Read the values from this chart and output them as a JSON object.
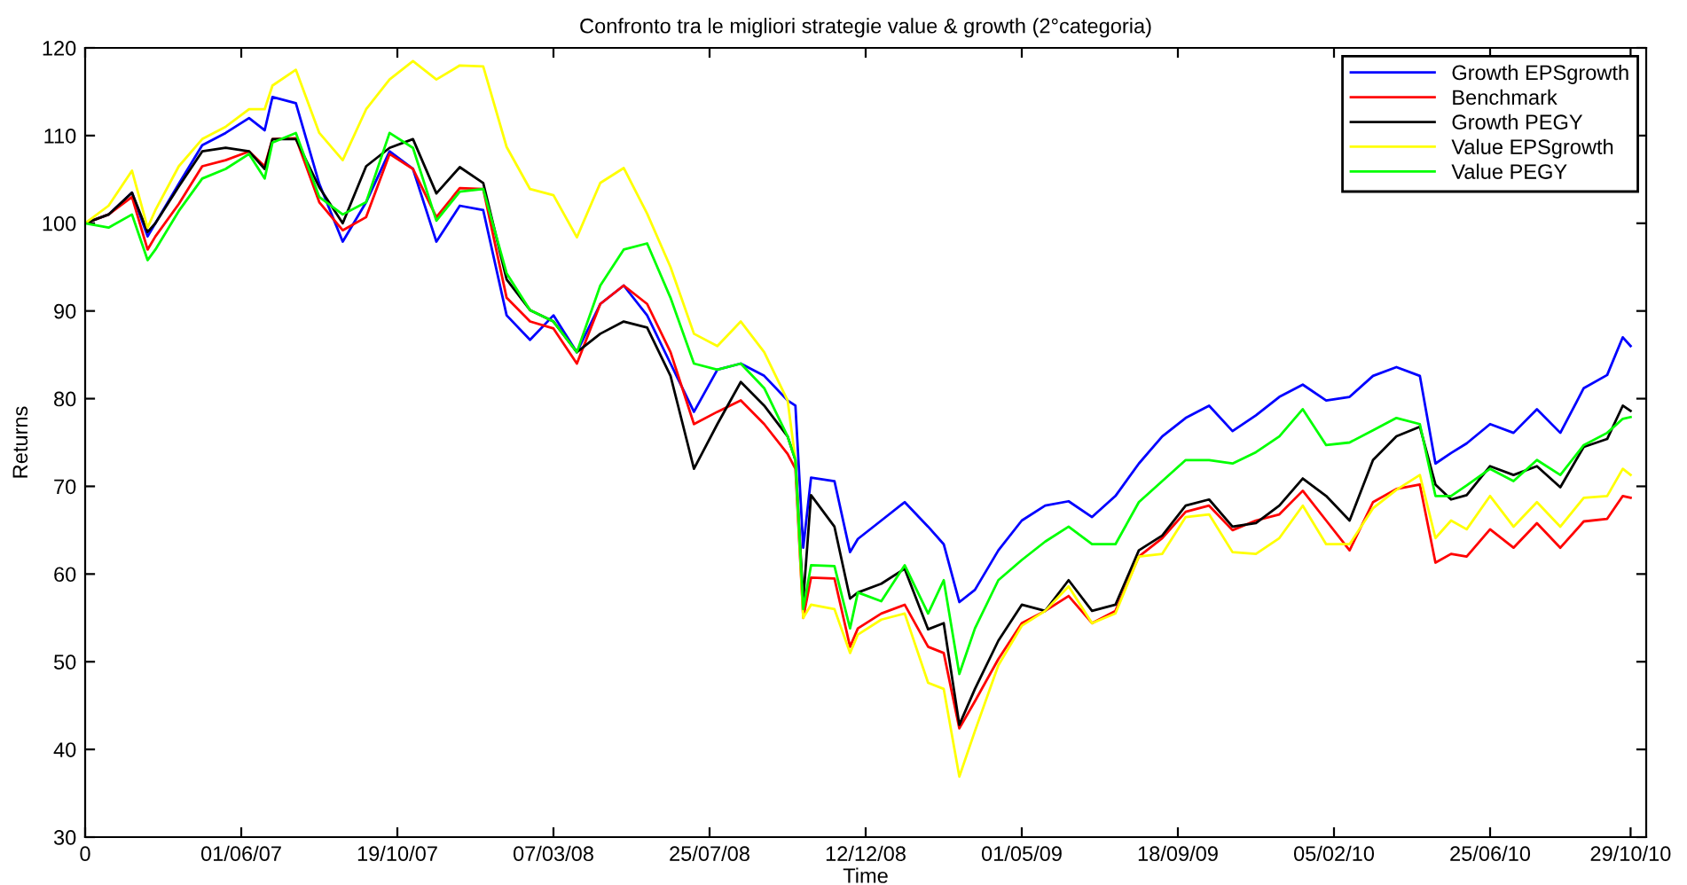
{
  "chart_data": {
    "type": "line",
    "title": "Confronto tra le migliori strategie value & growth (2°categoria)",
    "xlabel": "Time",
    "ylabel": "Returns",
    "x": [
      "2007-01-12",
      "2007-02-02",
      "2007-02-23",
      "2007-03-09",
      "2007-03-16",
      "2007-04-06",
      "2007-04-27",
      "2007-05-18",
      "2007-06-08",
      "2007-06-22",
      "2007-06-29",
      "2007-07-20",
      "2007-08-10",
      "2007-08-31",
      "2007-09-21",
      "2007-10-12",
      "2007-11-02",
      "2007-11-23",
      "2007-12-14",
      "2008-01-04",
      "2008-01-25",
      "2008-02-15",
      "2008-03-07",
      "2008-03-28",
      "2008-04-18",
      "2008-05-09",
      "2008-05-30",
      "2008-06-20",
      "2008-07-11",
      "2008-08-01",
      "2008-08-22",
      "2008-09-12",
      "2008-10-03",
      "2008-10-10",
      "2008-10-17",
      "2008-10-24",
      "2008-11-14",
      "2008-11-28",
      "2008-12-05",
      "2008-12-26",
      "2009-01-16",
      "2009-02-06",
      "2009-02-20",
      "2009-03-06",
      "2009-03-20",
      "2009-04-10",
      "2009-05-01",
      "2009-05-22",
      "2009-06-12",
      "2009-07-03",
      "2009-07-24",
      "2009-08-14",
      "2009-09-04",
      "2009-09-25",
      "2009-10-16",
      "2009-11-06",
      "2009-11-27",
      "2009-12-18",
      "2010-01-08",
      "2010-01-29",
      "2010-02-19",
      "2010-03-12",
      "2010-04-02",
      "2010-04-23",
      "2010-05-07",
      "2010-05-21",
      "2010-06-04",
      "2010-06-25",
      "2010-07-16",
      "2010-08-06",
      "2010-08-27",
      "2010-09-17",
      "2010-10-08",
      "2010-10-22",
      "2010-10-29"
    ],
    "series": [
      {
        "name": "Growth EPSgrowth",
        "color": "#0000ff",
        "values": [
          100,
          101,
          103.5,
          98.5,
          100,
          104.5,
          108.9,
          110.3,
          112,
          110.6,
          114.4,
          113.7,
          104.5,
          97.9,
          102.4,
          108.2,
          106.2,
          97.9,
          102,
          101.5,
          89.5,
          86.7,
          89.5,
          85.3,
          90.8,
          92.9,
          89.5,
          84,
          78.5,
          83.3,
          84,
          82.6,
          79.8,
          79.2,
          63,
          71,
          70.6,
          62.5,
          64,
          66.1,
          68.2,
          65.4,
          63.4,
          56.8,
          58.2,
          62.7,
          66.1,
          67.8,
          68.3,
          66.5,
          68.9,
          72.6,
          75.7,
          77.8,
          79.2,
          76.3,
          78.1,
          80.2,
          81.6,
          79.8,
          80.2,
          82.6,
          83.6,
          82.6,
          72.6,
          73.8,
          74.9,
          77.1,
          76.1,
          78.8,
          76.1,
          81.2,
          82.7,
          87,
          86
        ]
      },
      {
        "name": "Benchmark",
        "color": "#ff0000",
        "values": [
          100,
          101,
          103,
          97,
          98.5,
          102.2,
          106.5,
          107.2,
          108.2,
          106.5,
          109.6,
          109.7,
          102.4,
          99.2,
          100.7,
          107.9,
          106.2,
          100.7,
          104,
          103.9,
          91.5,
          88.8,
          88,
          84,
          90.8,
          92.9,
          90.8,
          85.3,
          77.1,
          78.5,
          79.8,
          77.1,
          73.7,
          72,
          55,
          59.6,
          59.5,
          51.7,
          53.8,
          55.5,
          56.5,
          51.7,
          51,
          42.4,
          45.5,
          50.3,
          54.4,
          55.8,
          57.5,
          54.4,
          55.8,
          62,
          64.1,
          67.1,
          67.8,
          65,
          66.1,
          66.8,
          69.5,
          66.1,
          62.7,
          68.2,
          69.7,
          70.2,
          61.3,
          62.3,
          62,
          65.1,
          63,
          65.8,
          63,
          66,
          66.3,
          68.9,
          68.7
        ]
      },
      {
        "name": "Growth PEGY",
        "color": "#000000",
        "values": [
          100,
          101,
          103.5,
          99,
          100,
          104.2,
          108.2,
          108.6,
          108.2,
          106.2,
          109.6,
          109.6,
          104.1,
          100,
          106.5,
          108.6,
          109.6,
          103.4,
          106.4,
          104.6,
          93.6,
          90.1,
          88.8,
          85.3,
          87.4,
          88.8,
          88.1,
          82.6,
          72,
          77.1,
          81.9,
          79.2,
          75.7,
          73,
          57,
          69,
          65.4,
          57.2,
          57.9,
          58.9,
          60.6,
          53.7,
          54.4,
          42.8,
          46.9,
          52.4,
          56.5,
          55.8,
          59.3,
          55.8,
          56.5,
          62.7,
          64.4,
          67.8,
          68.5,
          65.4,
          65.8,
          67.8,
          70.9,
          68.9,
          66.1,
          73,
          75.7,
          76.8,
          70.2,
          68.5,
          69,
          72.3,
          71.3,
          72.3,
          69.9,
          74.5,
          75.4,
          79.2,
          78.6
        ]
      },
      {
        "name": "Value EPSgrowth",
        "color": "#ffff00",
        "values": [
          100,
          102,
          106,
          99.5,
          101.5,
          106.5,
          109.6,
          111,
          113,
          113,
          115.7,
          117.5,
          110.3,
          107.2,
          113,
          116.4,
          118.5,
          116.4,
          118,
          117.9,
          108.7,
          103.9,
          103.2,
          98.4,
          104.6,
          106.3,
          101.1,
          95,
          87.4,
          86,
          88.8,
          85.3,
          79.8,
          73,
          55,
          56.5,
          56,
          51,
          53.1,
          54.8,
          55.5,
          47.6,
          46.9,
          36.9,
          42.1,
          49.6,
          54.1,
          55.8,
          58.6,
          54.4,
          55.5,
          62,
          62.3,
          66.5,
          66.8,
          62.5,
          62.3,
          64.1,
          67.8,
          63.4,
          63.4,
          67.5,
          69.6,
          71.3,
          64.1,
          66.1,
          65.1,
          68.9,
          65.4,
          68.2,
          65.4,
          68.7,
          68.9,
          72,
          71.3
        ]
      },
      {
        "name": "Value PEGY",
        "color": "#00ff00",
        "values": [
          100,
          99.5,
          101,
          95.8,
          97,
          101.4,
          105.1,
          106.2,
          107.9,
          105.1,
          109.2,
          110.3,
          103,
          101,
          102.4,
          110.3,
          108.6,
          100.3,
          103.6,
          103.9,
          94.3,
          90.1,
          88.8,
          85.3,
          92.9,
          97,
          97.7,
          91.5,
          84,
          83.3,
          84,
          81.2,
          75.7,
          73,
          56,
          61,
          60.9,
          53.8,
          57.9,
          56.9,
          61,
          55.5,
          59.3,
          48.6,
          53.8,
          59.3,
          61.6,
          63.7,
          65.4,
          63.4,
          63.4,
          68.2,
          70.6,
          73,
          73,
          72.6,
          73.9,
          75.7,
          78.8,
          74.7,
          75,
          76.4,
          77.8,
          77.1,
          68.9,
          68.9,
          70.1,
          72,
          70.6,
          73,
          71.3,
          74.7,
          76.1,
          77.7,
          77.9
        ]
      }
    ],
    "xlim": [
      "2007-01-12",
      "2010-11-12"
    ],
    "xticks": [
      {
        "value": "2007-01-12",
        "label": "0"
      },
      {
        "value": "2007-06-01",
        "label": "01/06/07"
      },
      {
        "value": "2007-10-19",
        "label": "19/10/07"
      },
      {
        "value": "2008-03-07",
        "label": "07/03/08"
      },
      {
        "value": "2008-07-25",
        "label": "25/07/08"
      },
      {
        "value": "2008-12-12",
        "label": "12/12/08"
      },
      {
        "value": "2009-05-01",
        "label": "01/05/09"
      },
      {
        "value": "2009-09-18",
        "label": "18/09/09"
      },
      {
        "value": "2010-02-05",
        "label": "05/02/10"
      },
      {
        "value": "2010-06-25",
        "label": "25/06/10"
      },
      {
        "value": "2010-10-29",
        "label": "29/10/10"
      }
    ],
    "ylim": [
      30,
      120
    ],
    "yticks": [
      30,
      40,
      50,
      60,
      70,
      80,
      90,
      100,
      110,
      120
    ],
    "grid": false,
    "legend": "top right",
    "marker": "none",
    "line_style": "solid"
  }
}
